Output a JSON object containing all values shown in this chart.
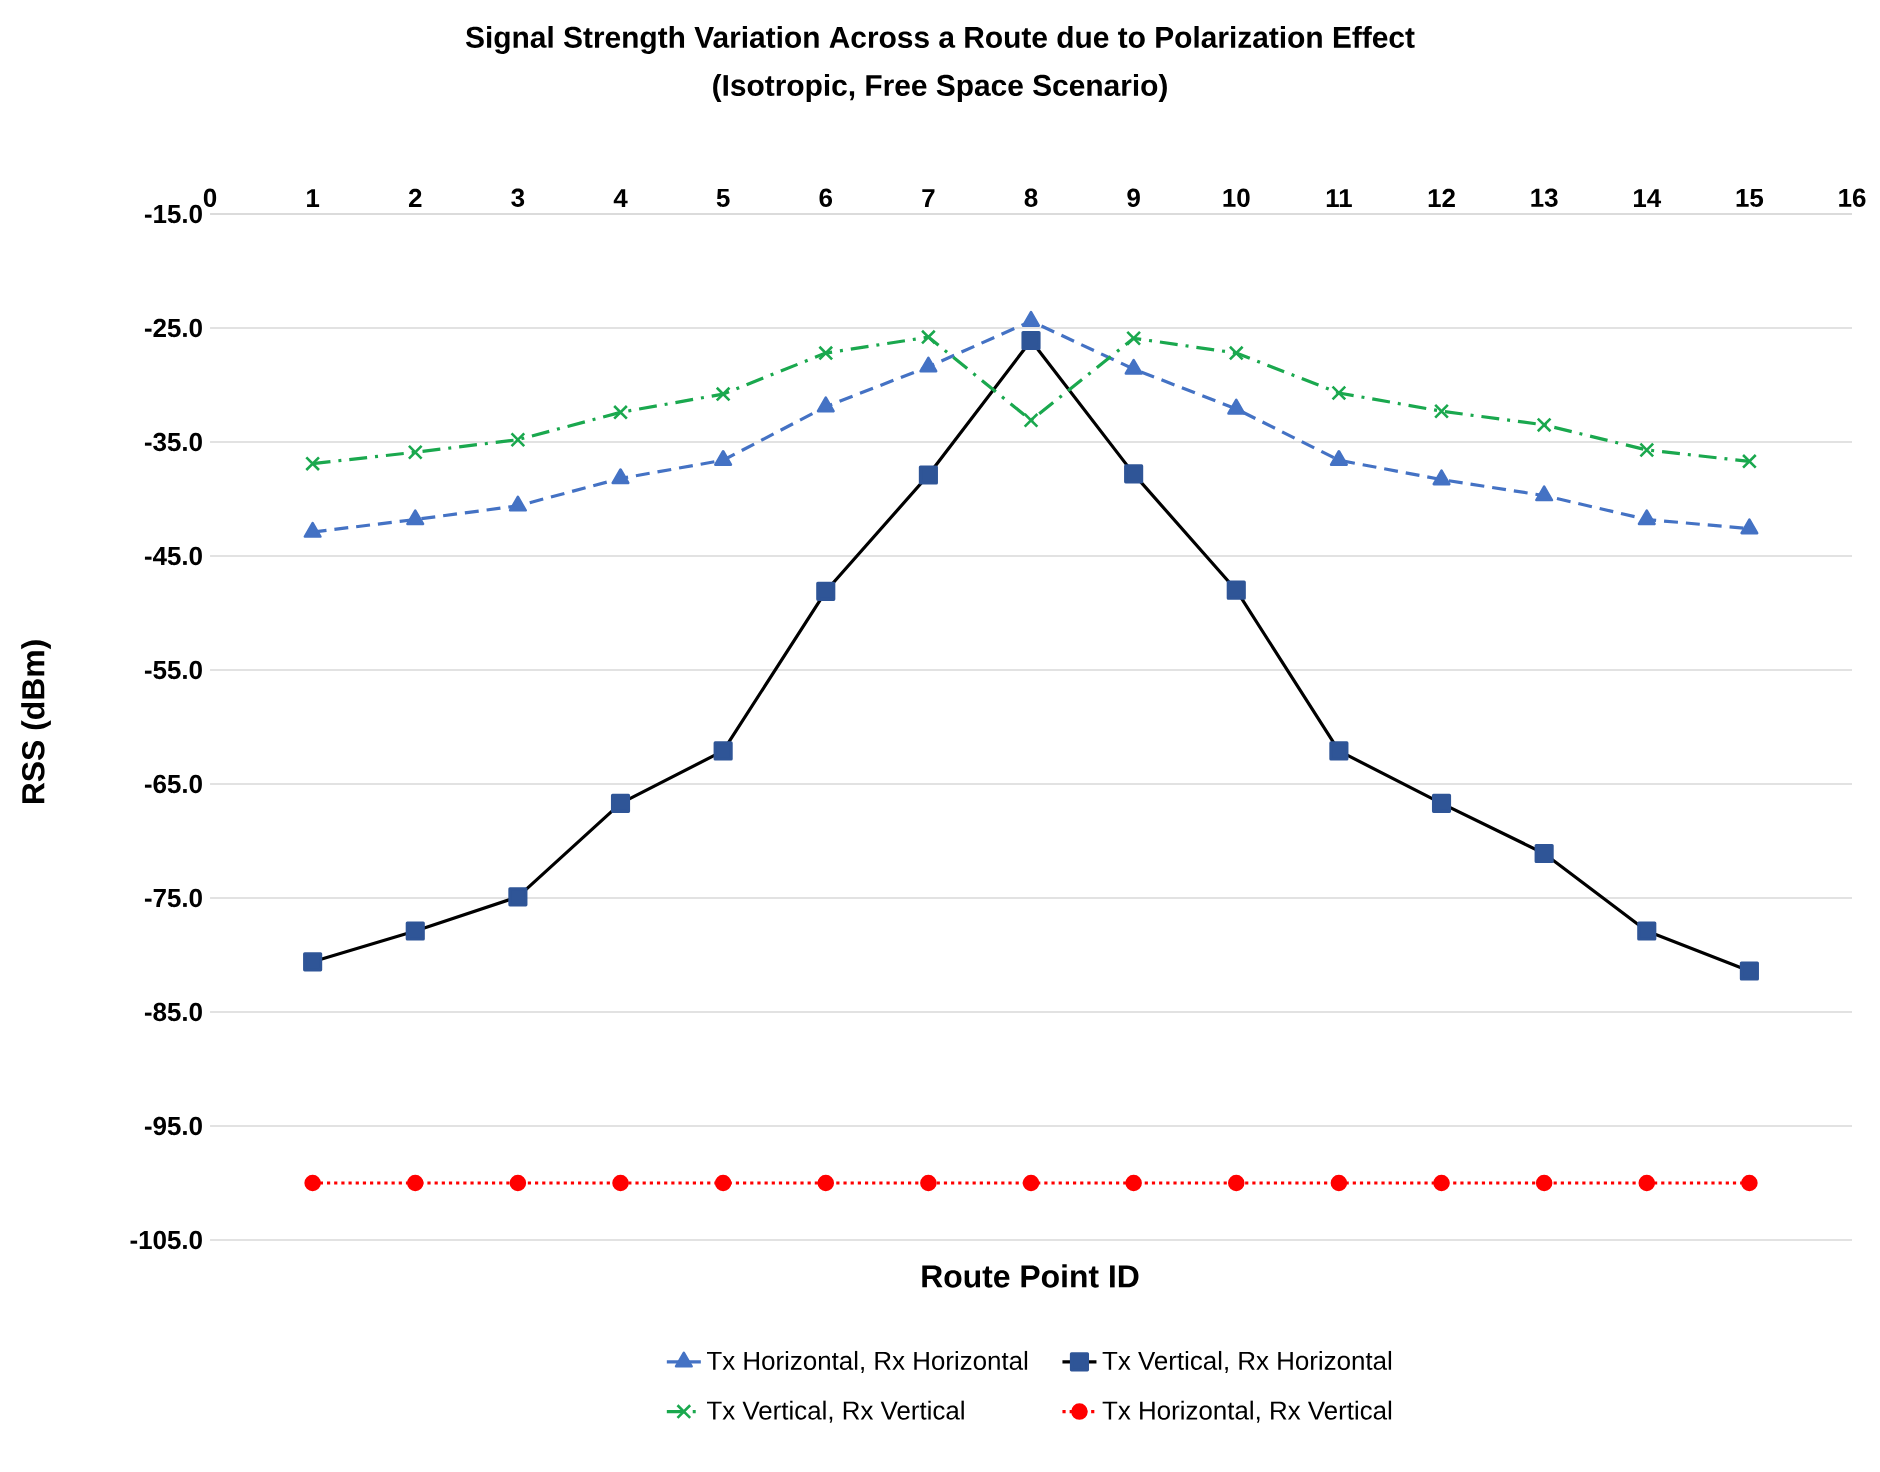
{
  "chart_data": {
    "type": "line",
    "title": "Signal Strength Variation Across a Route due to Polarization Effect",
    "subtitle": "(Isotropic, Free Space Scenario)",
    "xlabel": "Route Point ID",
    "ylabel": "RSS (dBm)",
    "x": [
      1,
      2,
      3,
      4,
      5,
      6,
      7,
      8,
      9,
      10,
      11,
      12,
      13,
      14,
      15
    ],
    "series": [
      {
        "name": "Tx Horizontal, Rx Horizontal",
        "color": "#4472c4",
        "marker": "triangle",
        "line_style": "dashed",
        "values": [
          -42.9,
          -41.8,
          -40.6,
          -38.2,
          -36.6,
          -31.9,
          -28.4,
          -24.4,
          -28.6,
          -32.1,
          -36.6,
          -38.3,
          -39.7,
          -41.8,
          -42.6
        ]
      },
      {
        "name": "Tx Vertical, Rx Horizontal",
        "color": "#000000",
        "marker": "square",
        "line_style": "solid",
        "values": [
          -80.6,
          -77.9,
          -74.9,
          -66.7,
          -62.1,
          -48.1,
          -37.9,
          -26.1,
          -37.8,
          -48.0,
          -62.1,
          -66.7,
          -71.1,
          -77.9,
          -81.4
        ]
      },
      {
        "name": "Tx Vertical, Rx Vertical",
        "color": "#1aa84e",
        "marker": "cross",
        "line_style": "dashdot",
        "values": [
          -36.9,
          -35.9,
          -34.8,
          -32.4,
          -30.8,
          -27.2,
          -25.8,
          -33.1,
          -25.9,
          -27.2,
          -30.7,
          -32.3,
          -33.5,
          -35.7,
          -36.7
        ]
      },
      {
        "name": "Tx Horizontal, Rx Vertical",
        "color": "#ff0000",
        "marker": "circle",
        "line_style": "dotted",
        "values": [
          -100,
          -100,
          -100,
          -100,
          -100,
          -100,
          -100,
          -100,
          -100,
          -100,
          -100,
          -100,
          -100,
          -100,
          -100
        ]
      }
    ],
    "xlim": [
      0,
      16
    ],
    "xticks": [
      0,
      1,
      2,
      3,
      4,
      5,
      6,
      7,
      8,
      9,
      10,
      11,
      12,
      13,
      14,
      15,
      16
    ],
    "ylim": [
      -105,
      -15
    ],
    "yticks": [
      {
        "value": -15,
        "label": "-15.0"
      },
      {
        "value": -25,
        "label": "-25.0"
      },
      {
        "value": -35,
        "label": "-35.0"
      },
      {
        "value": -45,
        "label": "-45.0"
      },
      {
        "value": -55,
        "label": "-55.0"
      },
      {
        "value": -65,
        "label": "-65.0"
      },
      {
        "value": -75,
        "label": "-75.0"
      },
      {
        "value": -85,
        "label": "-85.0"
      },
      {
        "value": -95,
        "label": "-95.0"
      },
      {
        "value": -105,
        "label": "-105.0"
      }
    ],
    "grid": "y",
    "legend": "bottom"
  }
}
